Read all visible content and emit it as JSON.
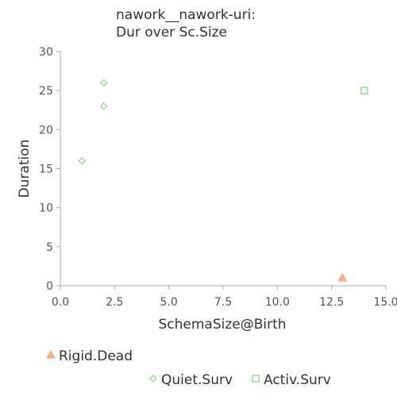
{
  "chart_data": {
    "type": "scatter",
    "title": "nawork__nawork-uri:\nDur over Sc.Size",
    "xlabel": "SchemaSize@Birth",
    "ylabel": "Duration",
    "xlim": [
      0,
      15
    ],
    "ylim": [
      0,
      30
    ],
    "x_ticks": [
      "0.0",
      "2.5",
      "5.0",
      "7.5",
      "10.0",
      "12.5",
      "15.0"
    ],
    "y_ticks": [
      "0",
      "5",
      "10",
      "15",
      "20",
      "25",
      "30"
    ],
    "grid": false,
    "legend_position": "bottom",
    "series": [
      {
        "name": "Rigid.Dead",
        "marker": "triangle",
        "color": "#f4a582",
        "points": [
          {
            "x": 13,
            "y": 1
          }
        ]
      },
      {
        "name": "Quiet.Surv",
        "marker": "diamond",
        "color": "#a6dba0",
        "points": [
          {
            "x": 1,
            "y": 16
          },
          {
            "x": 2,
            "y": 23
          },
          {
            "x": 2,
            "y": 26
          }
        ]
      },
      {
        "name": "Activ.Surv",
        "marker": "square",
        "color": "#a6dba0",
        "points": [
          {
            "x": 14,
            "y": 25
          }
        ]
      }
    ]
  }
}
